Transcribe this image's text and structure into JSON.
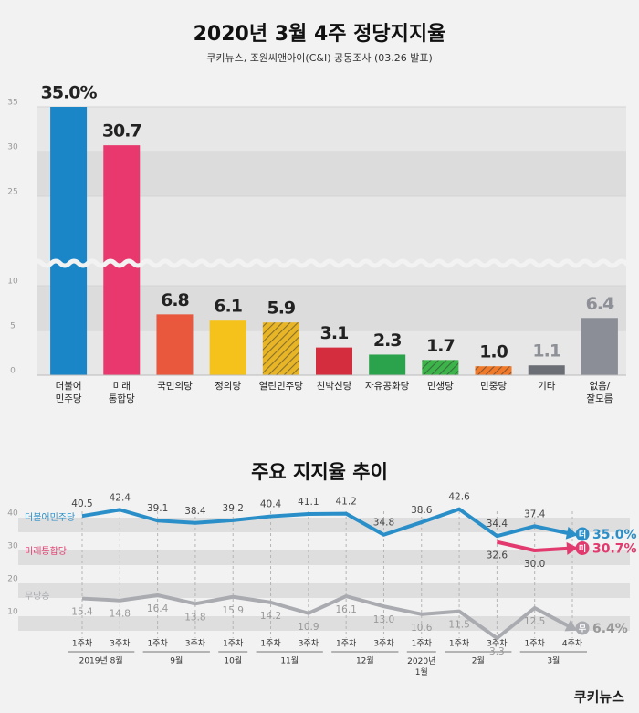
{
  "chart_data": [
    {
      "type": "bar",
      "title": "2020년 3월 4주 정당지지율",
      "subtitle": "쿠키뉴스, 조원씨앤아이(C&I) 공동조사 (03.26 발표)",
      "categories": [
        "더불어\n민주당",
        "미래\n통합당",
        "국민의당",
        "정의당",
        "열린민주당",
        "친박신당",
        "자유공화당",
        "민생당",
        "민중당",
        "기타",
        "없음/\n잘모름"
      ],
      "values": [
        35.0,
        30.7,
        6.8,
        6.1,
        5.9,
        3.1,
        2.3,
        1.7,
        1.0,
        1.1,
        6.4
      ],
      "value_labels": [
        "35.0%",
        "30.7",
        "6.8",
        "6.1",
        "5.9",
        "3.1",
        "2.3",
        "1.7",
        "1.0",
        "1.1",
        "6.4"
      ],
      "colors": [
        "#1a86c8",
        "#e8386d",
        "#e9573d",
        "#f5c21c",
        "#e8b527",
        "#d42d3e",
        "#2ba24c",
        "#3cb44a",
        "#f07a2a",
        "#6b6e74",
        "#8b8e97"
      ],
      "hatched": [
        false,
        false,
        false,
        false,
        true,
        false,
        false,
        true,
        true,
        false,
        false
      ],
      "label_colors": [
        "#222",
        "#222",
        "#222",
        "#222",
        "#222",
        "#222",
        "#222",
        "#222",
        "#222",
        "#8d9096",
        "#8d9096"
      ],
      "ylim": [
        0,
        35
      ],
      "yticks": [
        0,
        5,
        10,
        25,
        30,
        35
      ],
      "axis_break": [
        10,
        20
      ]
    },
    {
      "type": "line",
      "title": "주요 지지율 추이",
      "categories": [
        "1주차",
        "3주차",
        "1주차",
        "3주차",
        "1주차",
        "1주차",
        "3주차",
        "1주차",
        "3주차",
        "1주차",
        "1주차",
        "3주차",
        "1주차",
        "4주차"
      ],
      "groups": [
        {
          "label": "2019년 8월",
          "count": 2
        },
        {
          "label": "9월",
          "count": 2
        },
        {
          "label": "10월",
          "count": 1
        },
        {
          "label": "11월",
          "count": 2
        },
        {
          "label": "12월",
          "count": 2
        },
        {
          "label": "2020년\n1월",
          "count": 1
        },
        {
          "label": "2월",
          "count": 2
        },
        {
          "label": "3월",
          "count": 2
        }
      ],
      "series": [
        {
          "name": "더불어민주당",
          "badge": "더",
          "color": "#2a8fc8",
          "values": [
            40.5,
            42.4,
            39.1,
            38.4,
            39.2,
            40.4,
            41.1,
            41.2,
            34.8,
            38.6,
            42.6,
            34.4,
            37.4,
            35.0
          ],
          "value_labels": [
            "40.5",
            "42.4",
            "39.1",
            "38.4",
            "39.2",
            "40.4",
            "41.1",
            "41.2",
            "34.8",
            "38.6",
            "42.6",
            "34.4",
            "37.4",
            "35.0%"
          ]
        },
        {
          "name": "미래통합당",
          "badge": "미",
          "color": "#e23a6e",
          "values": [
            null,
            null,
            null,
            null,
            null,
            null,
            null,
            null,
            null,
            null,
            null,
            32.6,
            30.0,
            30.7
          ],
          "value_labels": [
            null,
            null,
            null,
            null,
            null,
            null,
            null,
            null,
            null,
            null,
            null,
            "32.6",
            "30.0",
            "30.7%"
          ]
        },
        {
          "name": "무당층",
          "badge": "무",
          "color": "#a9abb0",
          "values": [
            15.4,
            14.8,
            16.4,
            13.8,
            15.9,
            14.2,
            10.9,
            16.1,
            13.0,
            10.6,
            11.5,
            3.3,
            12.5,
            6.4
          ],
          "value_labels": [
            "15.4",
            "14.8",
            "16.4",
            "13.8",
            "15.9",
            "14.2",
            "10.9",
            "16.1",
            "13.0",
            "10.6",
            "11.5",
            "3.3",
            "12.5",
            "6.4%"
          ]
        }
      ],
      "ylim": [
        0,
        45
      ],
      "yticks": [
        10,
        20,
        30,
        40
      ]
    }
  ],
  "logo": "쿠키뉴스"
}
